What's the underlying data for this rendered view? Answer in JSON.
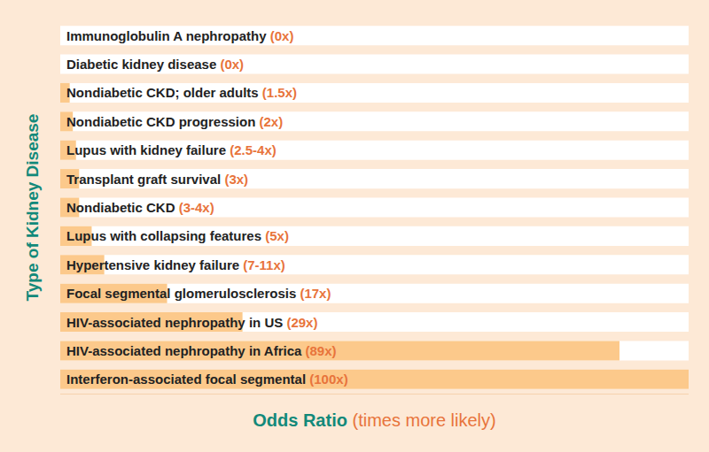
{
  "chart_data": {
    "type": "bar",
    "orientation": "horizontal",
    "y_label": "Type of Kidney Disease",
    "x_label": "Odds Ratio (times more likely)",
    "categories": [
      "Immunoglobulin A nephropathy",
      "Diabetic kidney disease",
      "Nondiabetic CKD; older adults",
      "Nondiabetic CKD progression",
      "Lupus with kidney failure",
      "Transplant graft survival",
      "Nondiabetic CKD",
      "Lupus with collapsing features",
      "Hypertensive kidney failure",
      "Focal segmental glomerulosclerosis",
      "HIV-associated nephropathy in US",
      "HIV-associated nephropathy in Africa",
      "Interferon-associated focal segmental"
    ],
    "values": [
      0,
      0,
      1.5,
      2,
      2.5,
      3,
      3,
      5,
      7,
      17,
      29,
      89,
      100
    ],
    "value_labels": [
      "(0x)",
      "(0x)",
      "(1.5x)",
      "(2x)",
      "(2.5-4x)",
      "(3x)",
      "(3-4x)",
      "(5x)",
      "(7-11x)",
      "(17x)",
      "(29x)",
      "(89x)",
      "(100x)"
    ],
    "data_labels": true,
    "color": "#fcc98b",
    "xlim": [
      0,
      100
    ],
    "grid": false,
    "tick_labels": false
  }
}
